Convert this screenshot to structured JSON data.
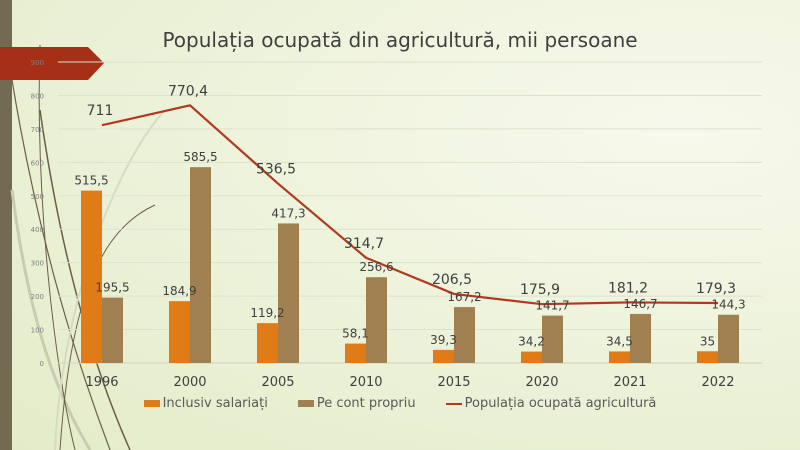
{
  "chart_data": {
    "type": "bar",
    "title": "Populația ocupată din agricultură, mii persoane",
    "categories": [
      "1996",
      "2000",
      "2005",
      "2010",
      "2015",
      "2020",
      "2021",
      "2022"
    ],
    "ylim": [
      0,
      900
    ],
    "yticks": [
      "0",
      "100",
      "200",
      "300",
      "400",
      "500",
      "600",
      "700",
      "800",
      "900"
    ],
    "grid": true,
    "legend_placement": "bottom",
    "series": [
      {
        "name": "Inclusiv salariați",
        "type": "bar",
        "color": "#e07b18",
        "values": [
          515.5,
          184.9,
          119.2,
          58.1,
          39.3,
          34.2,
          34.5,
          35
        ],
        "labels": [
          "515,5",
          "184,9",
          "119,2",
          "58,1",
          "39,3",
          "34,2",
          "34,5",
          "35"
        ]
      },
      {
        "name": "Pe cont propriu",
        "type": "bar",
        "color": "#a08050",
        "values": [
          195.5,
          585.5,
          417.3,
          256.6,
          167.2,
          141.7,
          146.7,
          144.3
        ],
        "labels": [
          "195,5",
          "585,5",
          "417,3",
          "256,6",
          "167,2",
          "141,7",
          "146,7",
          "144,3"
        ]
      },
      {
        "name": "Populația ocupată agricultură",
        "type": "line",
        "color": "#b03a1e",
        "values": [
          711,
          770.4,
          536.5,
          314.7,
          206.5,
          175.9,
          181.2,
          179.3
        ],
        "labels": [
          "711",
          "770,4",
          "536,5",
          "314,7",
          "206,5",
          "175,9",
          "181,2",
          "179,3"
        ]
      }
    ]
  }
}
